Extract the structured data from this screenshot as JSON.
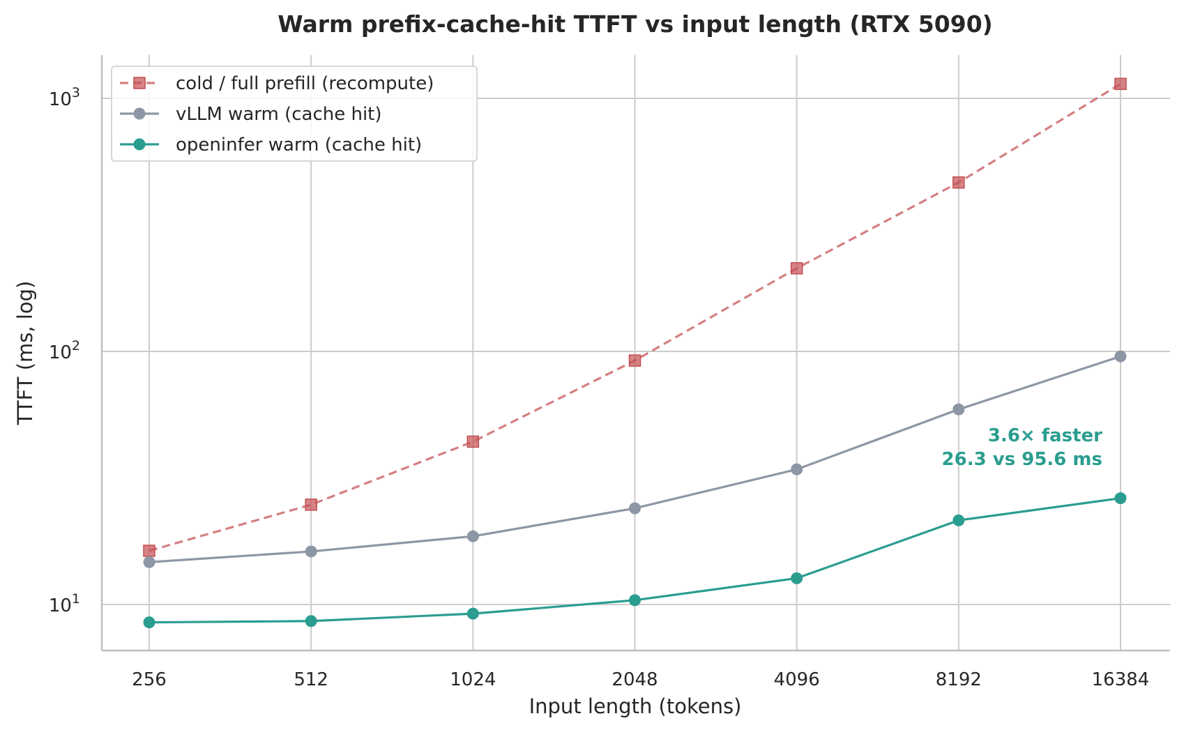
{
  "chart_data": {
    "type": "line",
    "title": "Warm prefix-cache-hit TTFT vs input length (RTX 5090)",
    "xlabel": "Input length (tokens)",
    "ylabel": "TTFT (ms, log)",
    "x": [
      256,
      512,
      1024,
      2048,
      4096,
      8192,
      16384
    ],
    "x_scale": "log2",
    "y_scale": "log",
    "ylim": [
      6.7,
      1550
    ],
    "y_ticks": [
      {
        "value": 10,
        "base": "10",
        "exp": "1"
      },
      {
        "value": 100,
        "base": "10",
        "exp": "2"
      },
      {
        "value": 1000,
        "base": "10",
        "exp": "3"
      }
    ],
    "grid": true,
    "legend_position": "top-left",
    "series": [
      {
        "name": "cold / full prefill (recompute)",
        "values": [
          16.3,
          24.8,
          44.0,
          92.0,
          213.0,
          465.0,
          1140.0
        ],
        "color": "#c44e52",
        "line_style": "dashed",
        "marker": "square"
      },
      {
        "name": "vLLM warm (cache hit)",
        "values": [
          14.7,
          16.2,
          18.6,
          24.0,
          34.2,
          59.0,
          95.6
        ],
        "color": "#8c96a5",
        "line_style": "solid",
        "marker": "circle"
      },
      {
        "name": "openinfer warm (cache hit)",
        "values": [
          8.5,
          8.6,
          9.2,
          10.4,
          12.7,
          21.5,
          26.3
        ],
        "color": "#2a9d8f",
        "line_style": "solid",
        "marker": "circle"
      }
    ],
    "annotation": {
      "lines": [
        "3.6× faster",
        "26.3 vs 95.6 ms"
      ],
      "color": "#2a9d8f"
    }
  }
}
